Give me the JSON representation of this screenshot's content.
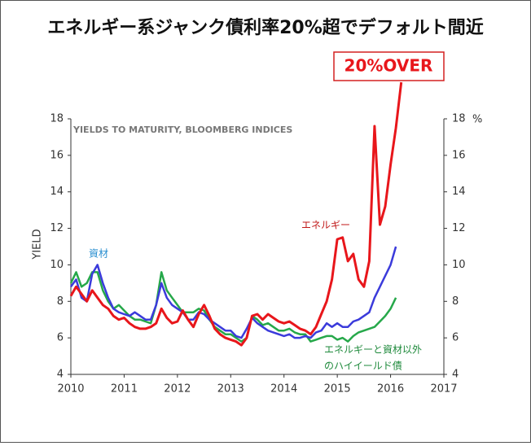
{
  "chart_data": {
    "type": "line",
    "title": "エネルギー系ジャンク債利率20%超でデフォルト間近",
    "ylabel": "YIELD",
    "y2label": "%",
    "note": "YIELDS TO MATURITY, BLOOMBERG INDICES",
    "callout": "20%OVER",
    "green_label": [
      "エネルギーと資材以外",
      "のハイイールド債"
    ],
    "xlim": [
      2010,
      2017
    ],
    "xticks": [
      2010,
      2011,
      2012,
      2013,
      2014,
      2015,
      2016,
      2017
    ],
    "ylim": [
      4,
      18
    ],
    "yticks": [
      4,
      6,
      8,
      10,
      12,
      14,
      16,
      18
    ],
    "y2lim": [
      4,
      18
    ],
    "y2ticks": [
      4,
      6,
      8,
      10,
      12,
      14,
      16,
      18
    ],
    "grid": false,
    "x": [
      2010.0,
      2010.1,
      2010.2,
      2010.3,
      2010.4,
      2010.5,
      2010.6,
      2010.7,
      2010.8,
      2010.9,
      2011.0,
      2011.1,
      2011.2,
      2011.3,
      2011.4,
      2011.5,
      2011.6,
      2011.7,
      2011.8,
      2011.9,
      2012.0,
      2012.1,
      2012.2,
      2012.3,
      2012.4,
      2012.5,
      2012.6,
      2012.7,
      2012.8,
      2012.9,
      2013.0,
      2013.1,
      2013.2,
      2013.3,
      2013.4,
      2013.5,
      2013.6,
      2013.7,
      2013.8,
      2013.9,
      2014.0,
      2014.1,
      2014.2,
      2014.3,
      2014.4,
      2014.5,
      2014.6,
      2014.7,
      2014.8,
      2014.9,
      2015.0,
      2015.1,
      2015.2,
      2015.3,
      2015.4,
      2015.5,
      2015.6,
      2015.7,
      2015.8,
      2015.9,
      2016.0,
      2016.1,
      2016.2
    ],
    "series": [
      {
        "name": "エネルギー",
        "color": "#e8161b",
        "values": [
          8.3,
          8.8,
          8.4,
          8.0,
          8.6,
          8.2,
          7.8,
          7.6,
          7.2,
          7.0,
          7.1,
          6.8,
          6.6,
          6.5,
          6.5,
          6.6,
          6.8,
          7.6,
          7.1,
          6.8,
          6.9,
          7.5,
          7.0,
          6.6,
          7.3,
          7.8,
          7.2,
          6.5,
          6.2,
          6.0,
          5.9,
          5.8,
          5.6,
          6.0,
          7.2,
          7.3,
          7.0,
          7.3,
          7.1,
          6.9,
          6.8,
          6.9,
          6.7,
          6.5,
          6.4,
          6.2,
          6.6,
          7.3,
          8.0,
          9.2,
          11.4,
          11.5,
          10.2,
          10.6,
          9.2,
          8.8,
          10.2,
          17.6,
          12.2,
          13.2,
          15.5,
          17.5,
          20.0
        ]
      },
      {
        "name": "資材",
        "color": "#3b3bdb",
        "values": [
          8.8,
          9.2,
          8.2,
          8.0,
          9.5,
          10.0,
          9.0,
          8.2,
          7.6,
          7.4,
          7.3,
          7.2,
          7.4,
          7.2,
          7.0,
          7.0,
          7.8,
          9.0,
          8.2,
          7.8,
          7.6,
          7.4,
          7.0,
          7.0,
          7.4,
          7.3,
          7.0,
          6.8,
          6.6,
          6.4,
          6.4,
          6.1,
          6.0,
          6.5,
          7.1,
          6.8,
          6.6,
          6.4,
          6.3,
          6.2,
          6.1,
          6.2,
          6.0,
          6.0,
          6.1,
          6.0,
          6.3,
          6.4,
          6.8,
          6.6,
          6.8,
          6.6,
          6.6,
          6.9,
          7.0,
          7.2,
          7.4,
          8.2,
          8.8,
          9.4,
          10.0,
          11.0,
          null
        ]
      },
      {
        "color": "#26a84a",
        "values": [
          9.0,
          9.6,
          8.8,
          9.0,
          9.6,
          9.6,
          8.6,
          8.0,
          7.6,
          7.8,
          7.5,
          7.2,
          7.0,
          7.0,
          6.9,
          6.8,
          7.8,
          9.6,
          8.6,
          8.2,
          7.8,
          7.4,
          7.4,
          7.4,
          7.6,
          7.5,
          7.0,
          6.6,
          6.4,
          6.2,
          6.2,
          6.0,
          5.8,
          6.0,
          7.2,
          7.0,
          6.7,
          6.8,
          6.6,
          6.4,
          6.4,
          6.5,
          6.3,
          6.2,
          6.2,
          5.8,
          5.9,
          6.0,
          6.1,
          6.1,
          5.9,
          6.0,
          5.8,
          6.1,
          6.3,
          6.4,
          6.5,
          6.6,
          6.9,
          7.2,
          7.6,
          8.2,
          null
        ]
      }
    ]
  }
}
